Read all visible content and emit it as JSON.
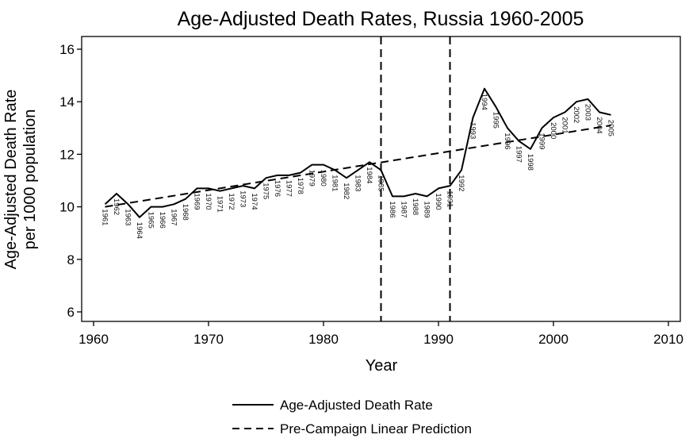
{
  "chart_data": {
    "type": "line",
    "title": "Age-Adjusted Death Rates, Russia 1960-2005",
    "xlabel": "Year",
    "ylabel": [
      "Age-Adjusted Death Rate",
      "per 1000 population"
    ],
    "xlim": [
      1960,
      2010
    ],
    "ylim": [
      6,
      16
    ],
    "xticks": [
      1960,
      1970,
      1980,
      1990,
      2000,
      2010
    ],
    "yticks": [
      6,
      8,
      10,
      12,
      14,
      16
    ],
    "grid": false,
    "legend_position": "bottom",
    "series": [
      {
        "name": "Age-Adjusted Death Rate",
        "style": "solid",
        "color": "#000000",
        "x": [
          1961,
          1962,
          1963,
          1964,
          1965,
          1966,
          1967,
          1968,
          1969,
          1970,
          1971,
          1972,
          1973,
          1974,
          1975,
          1976,
          1977,
          1978,
          1979,
          1980,
          1981,
          1982,
          1983,
          1984,
          1985,
          1986,
          1987,
          1988,
          1989,
          1990,
          1991,
          1992,
          1993,
          1994,
          1995,
          1996,
          1997,
          1998,
          1999,
          2000,
          2001,
          2002,
          2003,
          2004,
          2005
        ],
        "values": [
          10.1,
          10.5,
          10.1,
          9.6,
          10.0,
          10.0,
          10.1,
          10.3,
          10.7,
          10.7,
          10.6,
          10.7,
          10.8,
          10.7,
          11.1,
          11.2,
          11.2,
          11.3,
          11.6,
          11.6,
          11.4,
          11.1,
          11.4,
          11.7,
          11.4,
          10.4,
          10.4,
          10.5,
          10.4,
          10.7,
          10.8,
          11.4,
          13.4,
          14.5,
          13.8,
          13.0,
          12.5,
          12.2,
          13.0,
          13.4,
          13.6,
          14.0,
          14.1,
          13.6,
          13.5
        ]
      },
      {
        "name": "Pre-Campaign Linear Prediction",
        "style": "dashed",
        "color": "#000000",
        "x": [
          1961,
          2005
        ],
        "values": [
          10.0,
          13.1
        ]
      }
    ],
    "point_labels": [
      "1961",
      "1962",
      "1963",
      "1964",
      "1965",
      "1966",
      "1967",
      "1968",
      "1969",
      "1970",
      "1971",
      "1972",
      "1973",
      "1974",
      "1975",
      "1976",
      "1977",
      "1978",
      "1979",
      "1980",
      "1981",
      "1982",
      "1983",
      "1984",
      "1985",
      "1986",
      "1987",
      "1988",
      "1989",
      "1990",
      "1991",
      "1992",
      "1993",
      "1994",
      "1995",
      "1996",
      "1997",
      "1998",
      "1999",
      "2000",
      "2001",
      "2002",
      "2003",
      "2004",
      "2005"
    ],
    "vertical_lines": [
      1985,
      1991
    ]
  }
}
